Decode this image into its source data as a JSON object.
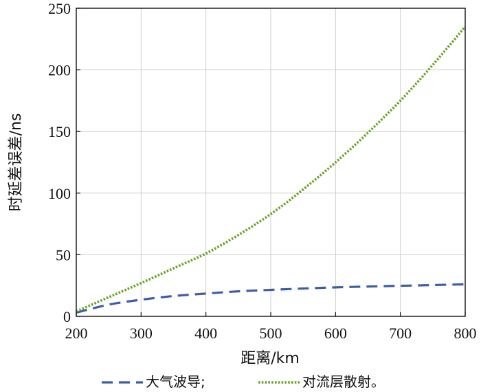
{
  "chart_data": {
    "type": "line",
    "xlabel": "距离/km",
    "ylabel": "时延差误差/ns",
    "xlim": [
      200,
      800
    ],
    "ylim": [
      0,
      250
    ],
    "x_ticks": [
      200,
      300,
      400,
      500,
      600,
      700,
      800
    ],
    "y_ticks": [
      0,
      50,
      100,
      150,
      200,
      250
    ],
    "grid": true,
    "legend_position": "bottom",
    "x": [
      200,
      250,
      300,
      350,
      400,
      450,
      500,
      550,
      600,
      650,
      700,
      750,
      800
    ],
    "series": [
      {
        "name": "大气波导;",
        "style": "dashed",
        "color": "#3b5ea8",
        "values": [
          3,
          9.5,
          13.5,
          16.5,
          18.5,
          20.3,
          21.5,
          22.6,
          23.5,
          24.2,
          24.8,
          25.4,
          26
        ]
      },
      {
        "name": "对流层散射。",
        "style": "dotted",
        "color": "#6aa323",
        "values": [
          4,
          15.5,
          27,
          39,
          51,
          66,
          83,
          103,
          125,
          149,
          175,
          204,
          235
        ]
      }
    ]
  }
}
